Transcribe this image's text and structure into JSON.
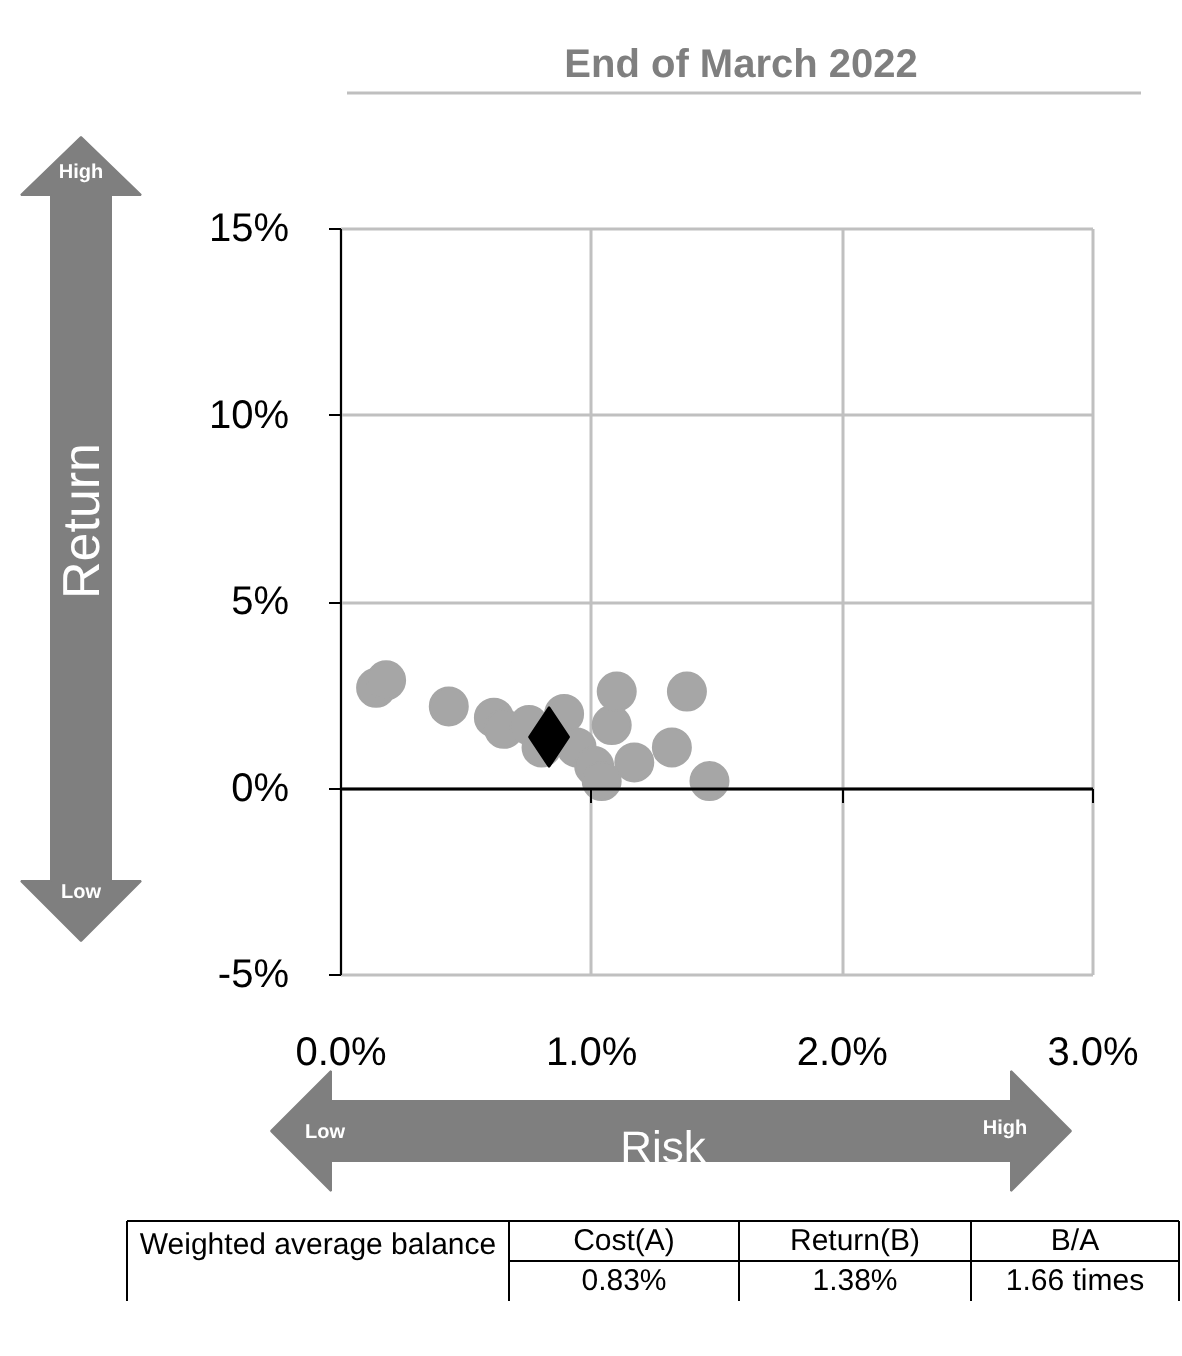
{
  "chart_data": {
    "type": "scatter",
    "title": "End of March 2022",
    "xlabel": "Risk",
    "ylabel": "Return",
    "xlim": [
      0,
      3
    ],
    "xticks": [
      {
        "value": 0,
        "label": "0.0%"
      },
      {
        "value": 1,
        "label": "1.0%"
      },
      {
        "value": 2,
        "label": "2.0%"
      },
      {
        "value": 3,
        "label": "3.0%"
      }
    ],
    "ylim": [
      -5,
      15
    ],
    "yticks": [
      {
        "value": -5,
        "label": "-5%"
      },
      {
        "value": 0,
        "label": "0%"
      },
      {
        "value": 5,
        "label": "5%"
      },
      {
        "value": 10,
        "label": "10%"
      },
      {
        "value": 15,
        "label": "15%"
      }
    ],
    "grid": true,
    "series": [
      {
        "color": "#a6a6a6",
        "marker": "circle",
        "x": [
          0.14,
          0.18,
          0.43,
          0.61,
          0.65,
          0.75,
          0.8,
          0.89,
          0.94,
          1.01,
          1.04,
          1.08,
          1.1,
          1.17,
          1.32,
          1.38,
          1.47
        ],
        "values": [
          2.7,
          2.9,
          2.2,
          1.9,
          1.6,
          1.7,
          1.1,
          2.0,
          1.1,
          0.6,
          0.2,
          1.7,
          2.6,
          0.7,
          1.1,
          2.6,
          0.2
        ]
      },
      {
        "color": "#000000",
        "marker": "diamond",
        "x": [
          0.83
        ],
        "values": [
          1.38
        ]
      }
    ],
    "annotations": [
      "High",
      "Low",
      "Low",
      "High",
      "Weighted average balance",
      "Cost(A)",
      "Return(B)",
      "B/A",
      "0.83%",
      "1.38%",
      "1.66 times"
    ]
  }
}
